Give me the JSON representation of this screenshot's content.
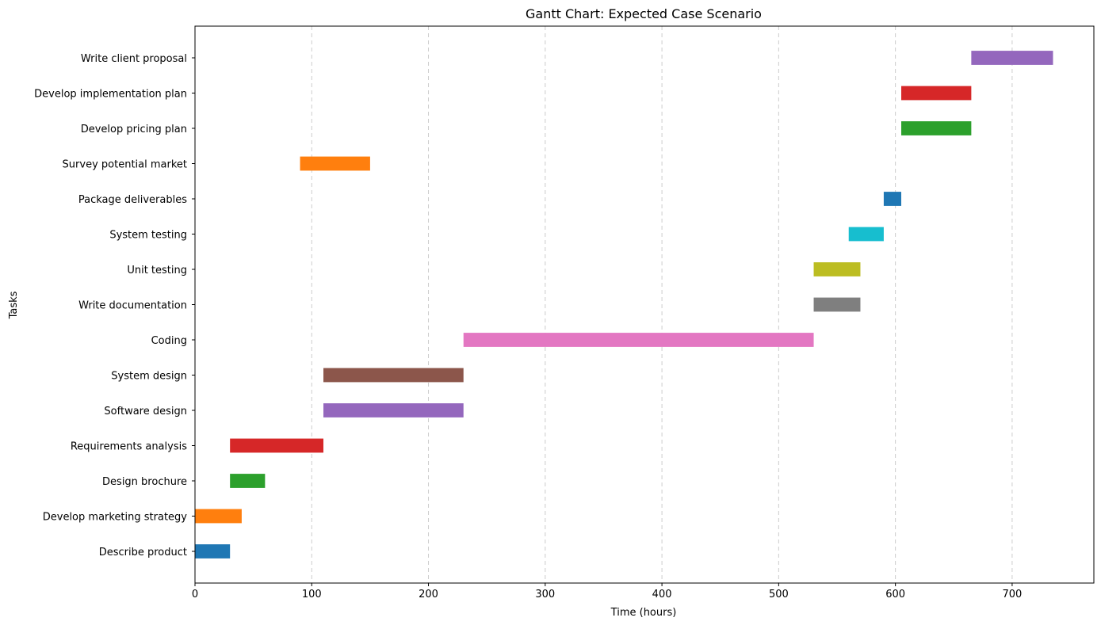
{
  "chart_data": {
    "type": "gantt",
    "title": "Gantt Chart: Expected Case Scenario",
    "xlabel": "Time (hours)",
    "ylabel": "Tasks",
    "xlim": [
      0,
      770
    ],
    "xticks": [
      0,
      100,
      200,
      300,
      400,
      500,
      600,
      700
    ],
    "grid": "x-dashed",
    "tasks": [
      {
        "name": "Describe product",
        "start": 0,
        "end": 30,
        "color": "#1f77b4"
      },
      {
        "name": "Develop marketing strategy",
        "start": 0,
        "end": 40,
        "color": "#ff7f0e"
      },
      {
        "name": "Design brochure",
        "start": 30,
        "end": 60,
        "color": "#2ca02c"
      },
      {
        "name": "Requirements analysis",
        "start": 30,
        "end": 110,
        "color": "#d62728"
      },
      {
        "name": "Software design",
        "start": 110,
        "end": 230,
        "color": "#9467bd"
      },
      {
        "name": "System design",
        "start": 110,
        "end": 230,
        "color": "#8c564b"
      },
      {
        "name": "Coding",
        "start": 230,
        "end": 530,
        "color": "#e377c2"
      },
      {
        "name": "Write documentation",
        "start": 530,
        "end": 570,
        "color": "#7f7f7f"
      },
      {
        "name": "Unit testing",
        "start": 530,
        "end": 570,
        "color": "#bcbd22"
      },
      {
        "name": "System testing",
        "start": 560,
        "end": 590,
        "color": "#17becf"
      },
      {
        "name": "Package deliverables",
        "start": 590,
        "end": 605,
        "color": "#1f77b4"
      },
      {
        "name": "Survey potential market",
        "start": 90,
        "end": 150,
        "color": "#ff7f0e"
      },
      {
        "name": "Develop pricing plan",
        "start": 605,
        "end": 665,
        "color": "#2ca02c"
      },
      {
        "name": "Develop implementation plan",
        "start": 605,
        "end": 665,
        "color": "#d62728"
      },
      {
        "name": "Write client proposal",
        "start": 665,
        "end": 735,
        "color": "#9467bd"
      }
    ]
  }
}
